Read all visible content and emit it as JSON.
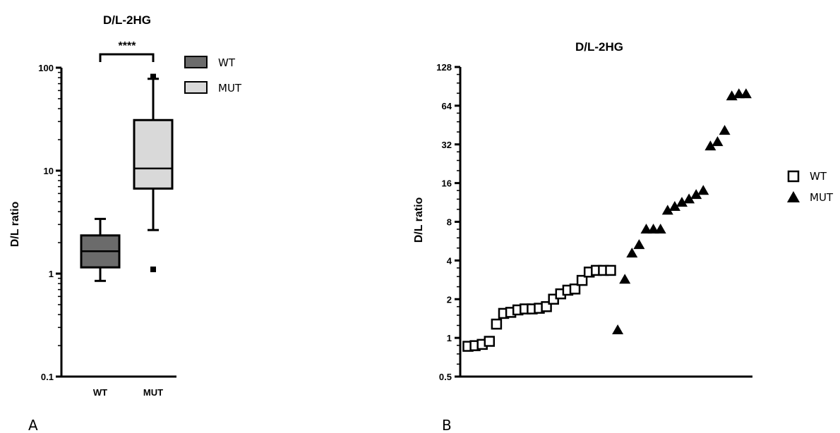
{
  "chart_data": [
    {
      "panel_label": "A",
      "type": "box",
      "title": "D/L-2HG",
      "ylabel": "D/L ratio",
      "yscale": "log10",
      "ylim": [
        0.1,
        100
      ],
      "yticks": [
        0.1,
        1,
        10,
        100
      ],
      "ytick_labels": [
        "0.1",
        "1",
        "10",
        "100"
      ],
      "categories": [
        "WT",
        "MUT"
      ],
      "boxes": [
        {
          "name": "WT",
          "color": "#6b6b6b",
          "whisker_low": 0.85,
          "q1": 1.15,
          "median": 1.65,
          "q3": 2.35,
          "whisker_high": 3.4,
          "outliers": []
        },
        {
          "name": "MUT",
          "color": "#d9d9d9",
          "whisker_low": 2.65,
          "q1": 6.7,
          "median": 10.5,
          "q3": 31,
          "whisker_high": 78,
          "outliers": [
            1.1,
            82
          ]
        }
      ],
      "legend": [
        {
          "name": "WT",
          "color": "#6b6b6b"
        },
        {
          "name": "MUT",
          "color": "#d9d9d9"
        }
      ],
      "significance": "****"
    },
    {
      "panel_label": "B",
      "type": "scatter",
      "title": "D/L-2HG",
      "ylabel": "D/L ratio",
      "yscale": "log2",
      "ylim": [
        0.5,
        128
      ],
      "yticks": [
        0.5,
        1,
        2,
        4,
        8,
        16,
        32,
        64,
        128
      ],
      "ytick_labels": [
        "0.5",
        "1",
        "2",
        "4",
        "8",
        "16",
        "32",
        "64",
        "128"
      ],
      "series": [
        {
          "name": "WT",
          "marker": "square-open",
          "x": [
            1,
            2,
            3,
            4,
            5,
            6,
            7,
            8,
            9,
            10,
            11,
            12,
            13,
            14,
            15,
            16,
            17,
            18,
            19,
            20,
            21
          ],
          "y": [
            0.86,
            0.87,
            0.89,
            0.94,
            1.28,
            1.55,
            1.58,
            1.65,
            1.68,
            1.68,
            1.7,
            1.75,
            2.0,
            2.2,
            2.35,
            2.4,
            2.8,
            3.25,
            3.35,
            3.35,
            3.35
          ]
        },
        {
          "name": "MUT",
          "marker": "triangle-filled",
          "x": [
            22,
            23,
            24,
            25,
            26,
            27,
            28,
            29,
            30,
            31,
            32,
            33,
            34,
            35,
            36,
            37,
            38,
            39,
            40
          ],
          "y": [
            1.15,
            2.85,
            4.55,
            5.3,
            7.0,
            7.0,
            7.0,
            9.8,
            10.5,
            11.3,
            12.0,
            13.0,
            14.0,
            31,
            33.5,
            41,
            76,
            79,
            79
          ]
        }
      ],
      "legend": [
        {
          "name": "WT",
          "marker": "square-open"
        },
        {
          "name": "MUT",
          "marker": "triangle-filled"
        }
      ]
    }
  ]
}
